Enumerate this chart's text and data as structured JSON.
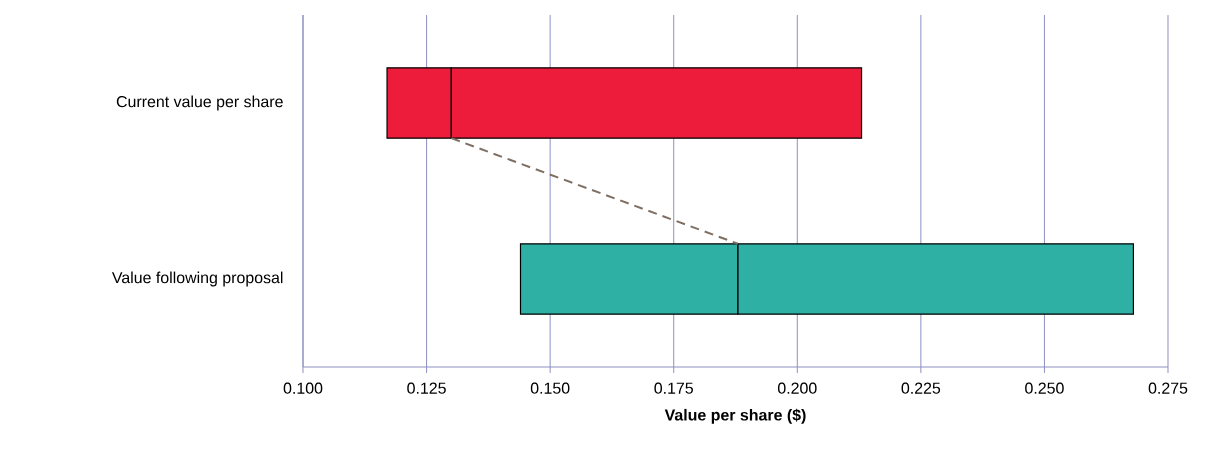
{
  "chart_data": {
    "type": "bar",
    "orientation": "horizontal",
    "xlabel": "Value per share ($)",
    "categories": [
      "Current value per share",
      "Value following proposal"
    ],
    "series": [
      {
        "colors": [
          "#ed1c3a",
          "#2fb0a4"
        ],
        "base": [
          0.117,
          0.144
        ],
        "values": [
          0.013,
          0.044
        ]
      },
      {
        "colors": [
          "#ed1c3a",
          "#2fb0a4"
        ],
        "base": [
          0.13,
          0.188
        ],
        "values": [
          0.083,
          0.08
        ]
      }
    ],
    "xlim": [
      0.1,
      0.275
    ],
    "xticks": [
      {
        "value": 0.1,
        "label": "0.100"
      },
      {
        "value": 0.125,
        "label": "0.125"
      },
      {
        "value": 0.15,
        "label": "0.150"
      },
      {
        "value": 0.175,
        "label": "0.175"
      },
      {
        "value": 0.2,
        "label": "0.200"
      },
      {
        "value": 0.225,
        "label": "0.225"
      },
      {
        "value": 0.25,
        "label": "0.250"
      },
      {
        "value": 0.275,
        "label": "0.275"
      }
    ],
    "grid": "x"
  }
}
